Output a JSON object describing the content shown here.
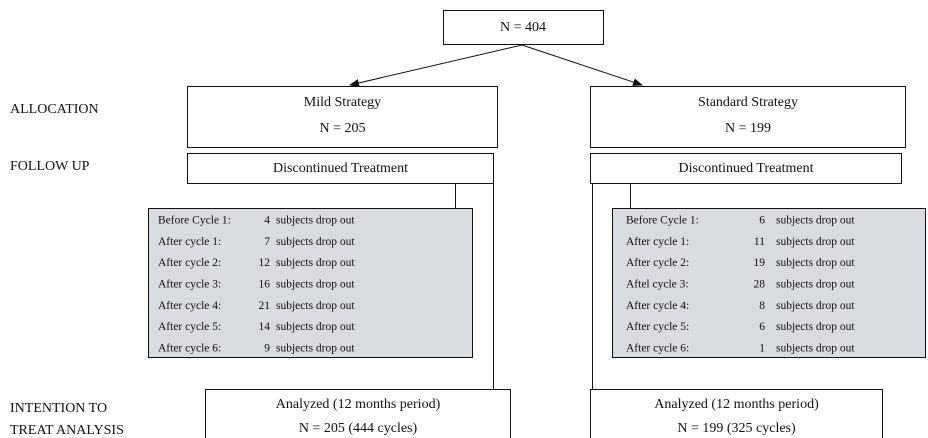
{
  "total": "N = 404",
  "stages": {
    "allocation": "ALLOCATION",
    "follow_up": "FOLLOW UP",
    "itt": [
      "INTENTION TO",
      "TREAT ANALYSIS"
    ]
  },
  "arms": [
    {
      "name": "Mild Strategy",
      "n": "N = 205",
      "followup": "Discontinued Treatment",
      "dropout_text": "subjects drop out",
      "dropouts": [
        {
          "label": "Before Cycle 1:",
          "count": 4
        },
        {
          "label": "After cycle 1:",
          "count": 7
        },
        {
          "label": "After cycle 2:",
          "count": 12
        },
        {
          "label": "After cycle 3:",
          "count": 16
        },
        {
          "label": "After cycle 4:",
          "count": 21
        },
        {
          "label": "After cycle 5:",
          "count": 14
        },
        {
          "label": "After cycle 6:",
          "count": 9
        }
      ],
      "analyzed_title": "Analyzed (12 months period)",
      "analyzed_n": "N = 205 (444 cycles)"
    },
    {
      "name": "Standard Strategy",
      "n": "N = 199",
      "followup": "Discontinued Treatment",
      "dropout_text": "subjects drop out",
      "dropouts": [
        {
          "label": "Before Cycle 1:",
          "count": 6
        },
        {
          "label": "After cycle 1:",
          "count": 11
        },
        {
          "label": "After cycle 2:",
          "count": 19
        },
        {
          "label": "Aftel cycle 3:",
          "count": 28
        },
        {
          "label": "After cycle 4:",
          "count": 8
        },
        {
          "label": "After cycle 5:",
          "count": 6
        },
        {
          "label": "After cycle 6:",
          "count": 1
        }
      ],
      "analyzed_title": "Analyzed (12 months period)",
      "analyzed_n": "N = 199 (325 cycles)"
    }
  ]
}
